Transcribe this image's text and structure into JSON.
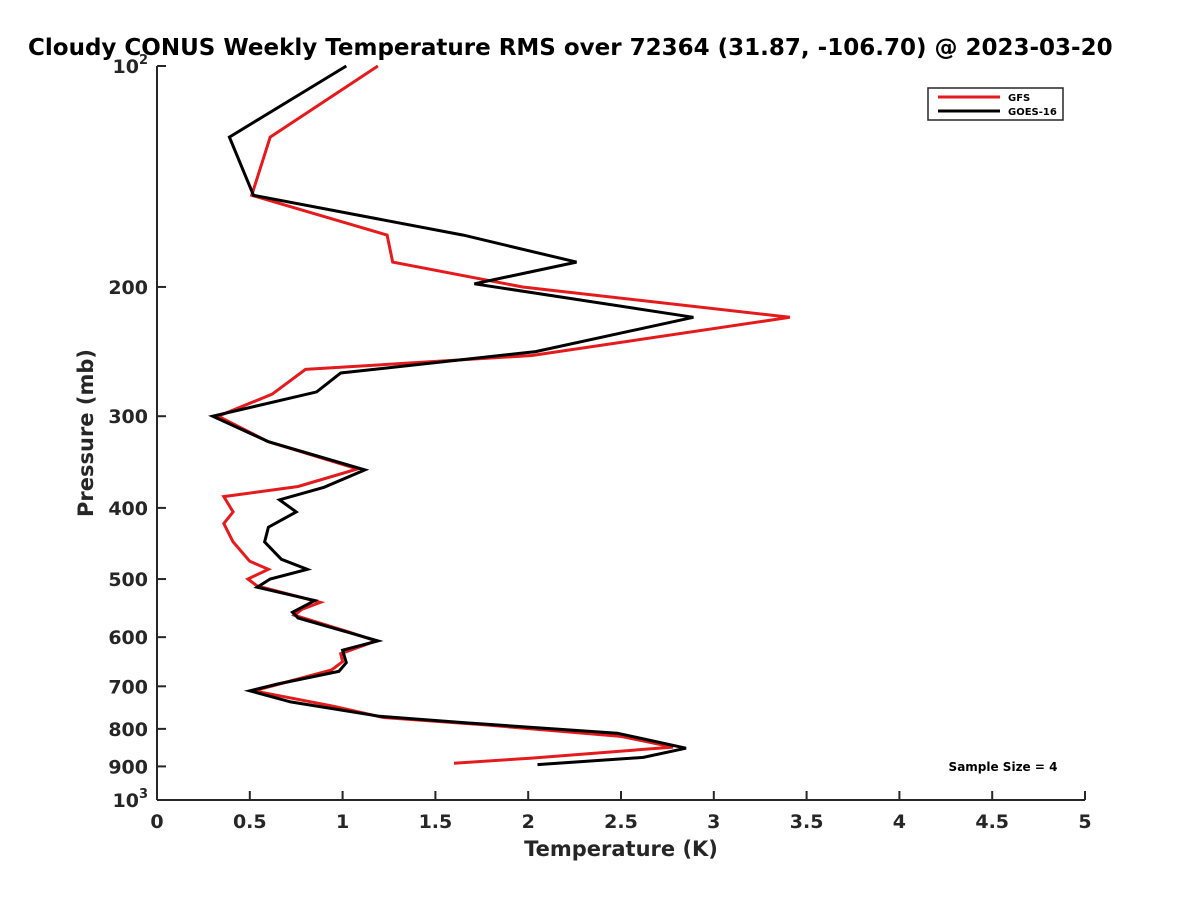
{
  "chart_data": {
    "type": "line",
    "title": "Cloudy CONUS Weekly Temperature RMS over 72364 (31.87, -106.70) @ 2023-03-20",
    "xlabel": "Temperature (K)",
    "ylabel": "Pressure (mb)",
    "xlim": [
      0,
      5
    ],
    "ylim": [
      100,
      1000
    ],
    "y_scale": "log",
    "y_reversed": true,
    "x_ticks": [
      {
        "value": 0,
        "label": "0"
      },
      {
        "value": 0.5,
        "label": "0.5"
      },
      {
        "value": 1,
        "label": "1"
      },
      {
        "value": 1.5,
        "label": "1.5"
      },
      {
        "value": 2,
        "label": "2"
      },
      {
        "value": 2.5,
        "label": "2.5"
      },
      {
        "value": 3,
        "label": "3"
      },
      {
        "value": 3.5,
        "label": "3.5"
      },
      {
        "value": 4,
        "label": "4"
      },
      {
        "value": 4.5,
        "label": "4.5"
      },
      {
        "value": 5,
        "label": "5"
      }
    ],
    "y_ticks": [
      {
        "value": 100,
        "label": "10",
        "sup": "2"
      },
      {
        "value": 200,
        "label": "200"
      },
      {
        "value": 300,
        "label": "300"
      },
      {
        "value": 400,
        "label": "400"
      },
      {
        "value": 500,
        "label": "500"
      },
      {
        "value": 600,
        "label": "600"
      },
      {
        "value": 700,
        "label": "700"
      },
      {
        "value": 800,
        "label": "800"
      },
      {
        "value": 900,
        "label": "900"
      },
      {
        "value": 1000,
        "label": "10",
        "sup": "3"
      }
    ],
    "grid": false,
    "legend_position": "top-right",
    "series": [
      {
        "name": "GFS",
        "color": "#e41a1c",
        "points": [
          [
            1.19,
            100
          ],
          [
            0.61,
            125
          ],
          [
            0.51,
            150
          ],
          [
            1.24,
            170
          ],
          [
            1.27,
            185
          ],
          [
            1.97,
            200
          ],
          [
            3.41,
            220
          ],
          [
            2.02,
            248
          ],
          [
            0.8,
            259
          ],
          [
            0.62,
            280
          ],
          [
            0.33,
            300
          ],
          [
            0.6,
            325
          ],
          [
            1.08,
            354
          ],
          [
            0.76,
            374
          ],
          [
            0.36,
            386
          ],
          [
            0.41,
            405
          ],
          [
            0.36,
            420
          ],
          [
            0.41,
            445
          ],
          [
            0.5,
            473
          ],
          [
            0.6,
            485
          ],
          [
            0.49,
            500
          ],
          [
            0.54,
            511
          ],
          [
            0.88,
            538
          ],
          [
            0.78,
            550
          ],
          [
            0.74,
            560
          ],
          [
            1.03,
            590
          ],
          [
            1.18,
            607
          ],
          [
            0.99,
            632
          ],
          [
            1.0,
            648
          ],
          [
            0.94,
            665
          ],
          [
            0.65,
            696
          ],
          [
            0.52,
            710
          ],
          [
            0.95,
            745
          ],
          [
            1.22,
            772
          ],
          [
            1.77,
            790
          ],
          [
            2.5,
            819
          ],
          [
            2.78,
            847
          ],
          [
            2.01,
            877
          ],
          [
            1.6,
            891
          ]
        ]
      },
      {
        "name": "GOES-16",
        "color": "#000000",
        "points": [
          [
            1.02,
            100
          ],
          [
            0.39,
            125
          ],
          [
            0.52,
            150
          ],
          [
            1.65,
            170
          ],
          [
            2.26,
            185
          ],
          [
            1.71,
            198
          ],
          [
            2.89,
            220
          ],
          [
            2.04,
            245
          ],
          [
            0.99,
            262
          ],
          [
            0.86,
            278
          ],
          [
            0.3,
            300
          ],
          [
            0.6,
            325
          ],
          [
            1.12,
            355
          ],
          [
            0.9,
            375
          ],
          [
            0.66,
            390
          ],
          [
            0.75,
            405
          ],
          [
            0.6,
            425
          ],
          [
            0.58,
            445
          ],
          [
            0.67,
            470
          ],
          [
            0.81,
            485
          ],
          [
            0.61,
            500
          ],
          [
            0.54,
            513
          ],
          [
            0.85,
            535
          ],
          [
            0.73,
            555
          ],
          [
            0.76,
            565
          ],
          [
            1.02,
            590
          ],
          [
            1.19,
            607
          ],
          [
            1.0,
            625
          ],
          [
            1.02,
            650
          ],
          [
            0.98,
            668
          ],
          [
            0.65,
            695
          ],
          [
            0.5,
            710
          ],
          [
            0.72,
            735
          ],
          [
            1.2,
            769
          ],
          [
            1.66,
            785
          ],
          [
            2.48,
            811
          ],
          [
            2.85,
            850
          ],
          [
            2.62,
            875
          ],
          [
            2.05,
            895
          ]
        ]
      }
    ],
    "annotations": [
      {
        "text": "Sample Size = 4"
      }
    ]
  }
}
